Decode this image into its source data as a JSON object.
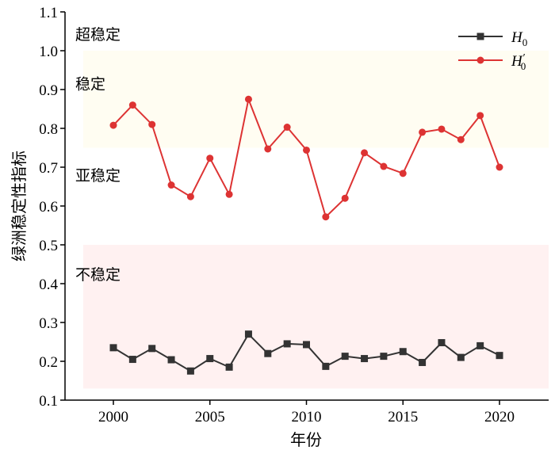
{
  "chart_data": {
    "type": "line",
    "xlabel": "年份",
    "ylabel": "绿洲稳定性指标",
    "xlim": [
      1998,
      2023
    ],
    "ylim": [
      0.1,
      1.1
    ],
    "xticks": [
      2000,
      2005,
      2010,
      2015,
      2020
    ],
    "yticks": [
      0.1,
      0.2,
      0.3,
      0.4,
      0.5,
      0.6,
      0.7,
      0.8,
      0.9,
      1.0,
      1.1
    ],
    "grid": false,
    "legend_position": "top-right",
    "x": [
      2000,
      2001,
      2002,
      2003,
      2004,
      2005,
      2006,
      2007,
      2008,
      2009,
      2010,
      2011,
      2012,
      2013,
      2014,
      2015,
      2016,
      2017,
      2018,
      2019,
      2020
    ],
    "series": [
      {
        "name": "H0",
        "legend_base": "H",
        "legend_sub": "0",
        "color": "#333333",
        "marker": "square",
        "values": [
          0.235,
          0.205,
          0.233,
          0.204,
          0.175,
          0.207,
          0.185,
          0.27,
          0.22,
          0.245,
          0.243,
          0.187,
          0.213,
          0.207,
          0.213,
          0.225,
          0.197,
          0.248,
          0.21,
          0.24,
          0.215
        ]
      },
      {
        "name": "H'0",
        "legend_base": "H",
        "legend_prime": "′",
        "legend_sub": "0",
        "color": "#dd3333",
        "marker": "circle",
        "values": [
          0.808,
          0.86,
          0.81,
          0.654,
          0.624,
          0.723,
          0.63,
          0.875,
          0.747,
          0.803,
          0.744,
          0.572,
          0.62,
          0.737,
          0.702,
          0.684,
          0.79,
          0.798,
          0.771,
          0.833,
          0.7
        ]
      }
    ],
    "zones": [
      {
        "label": "超稳定",
        "label_y": 1.043,
        "color": "#ffffff"
      },
      {
        "label": "稳定",
        "label_y": 0.915,
        "range": [
          0.75,
          1.0
        ],
        "color": "#fffdf2"
      },
      {
        "label": "亚稳定",
        "label_y": 0.68,
        "color": "#ffffff"
      },
      {
        "label": "不稳定",
        "label_y": 0.425,
        "range": [
          0.13,
          0.5
        ],
        "color": "#fff1f1"
      }
    ]
  }
}
